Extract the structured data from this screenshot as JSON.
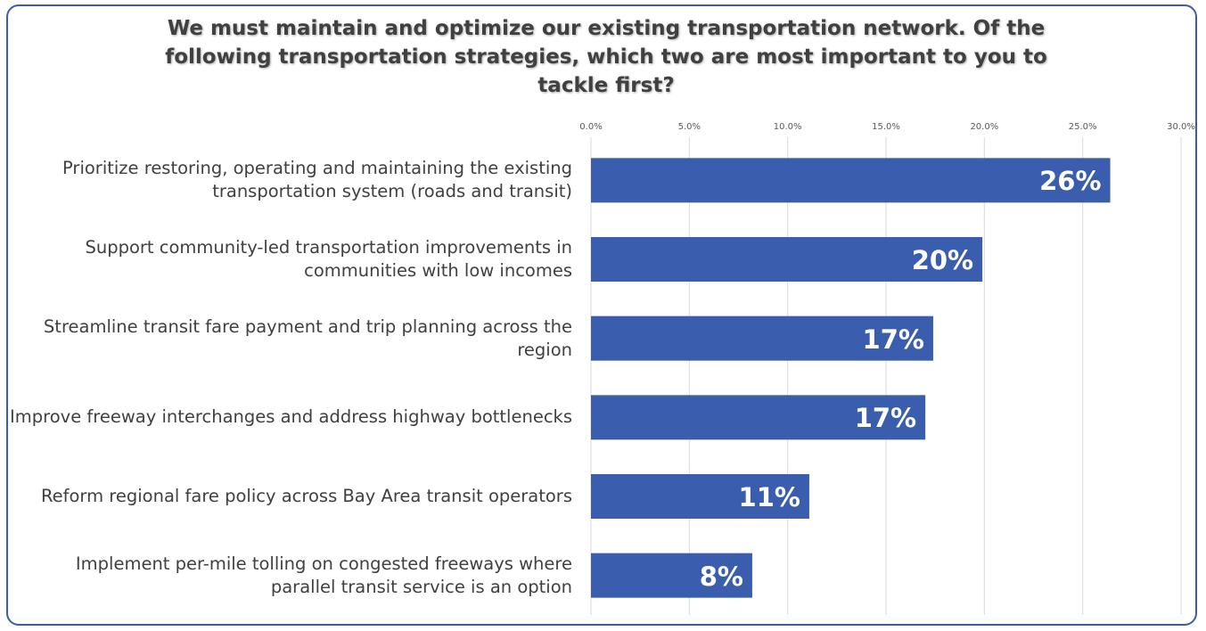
{
  "chart_data": {
    "type": "barh",
    "title": "We must maintain and optimize our existing transportation network. Of the following transportation strategies, which two are most important to you to tackle first?",
    "categories": [
      "Prioritize restoring, operating and maintaining the existing transportation system (roads and transit)",
      "Support community-led transportation improvements in communities with low incomes",
      "Streamline transit fare payment and trip planning across the region",
      "Improve freeway interchanges and address highway bottlenecks",
      "Reform regional fare policy across Bay Area transit operators",
      "Implement per-mile tolling on congested freeways where parallel transit service is an option"
    ],
    "values": [
      26.4,
      19.9,
      17.4,
      17.0,
      11.1,
      8.2
    ],
    "value_labels": [
      "26%",
      "20%",
      "17%",
      "17%",
      "11%",
      "8%"
    ],
    "color": "#3a5dae",
    "xlim": [
      0,
      30
    ],
    "xticks": [
      {
        "value": 0,
        "label": "0.0%"
      },
      {
        "value": 5,
        "label": "5.0%"
      },
      {
        "value": 10,
        "label": "10.0%"
      },
      {
        "value": 15,
        "label": "15.0%"
      },
      {
        "value": 20,
        "label": "20.0%"
      },
      {
        "value": 25,
        "label": "25.0%"
      },
      {
        "value": 30,
        "label": "30.0%"
      }
    ],
    "grid": true
  }
}
